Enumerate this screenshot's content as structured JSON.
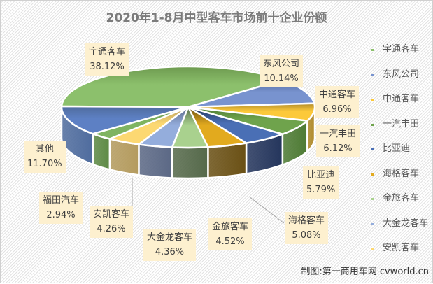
{
  "chart_data": {
    "type": "pie",
    "variant": "3d-pie",
    "title": "2020年1-8月中型客车市场前十企业份额",
    "categories": [
      "宇通客车",
      "东风公司",
      "中通客车",
      "一汽丰田",
      "比亚迪",
      "海格客车",
      "金旅客车",
      "大金龙客车",
      "安凯客车",
      "福田汽车",
      "其他"
    ],
    "values": [
      38.12,
      10.14,
      6.96,
      6.12,
      5.79,
      5.08,
      4.52,
      4.36,
      4.26,
      2.94,
      11.7
    ],
    "labels": [
      "38.12%",
      "10.14%",
      "6.96%",
      "6.12%",
      "5.79%",
      "5.08%",
      "4.52%",
      "4.36%",
      "4.26%",
      "2.94%",
      "11.70%"
    ],
    "colors": [
      "#8cc06c",
      "#7893cf",
      "#fcc93a",
      "#6fa34c",
      "#4a6fb5",
      "#e2aa1e",
      "#a9d18e",
      "#94addc",
      "#fcd872",
      "#7fb461",
      "#5d80c4"
    ],
    "side_colors": [
      "#6d9a4f",
      "#52679a",
      "#b08a2a",
      "#4d7a33",
      "#24355c",
      "#6a5014",
      "#55694a",
      "#5b6885",
      "#b49b5e",
      "#5e8a45",
      "#4f6c9e"
    ],
    "legend_position": "right",
    "legend": [
      "宇通客车",
      "东风公司",
      "中通客车",
      "一汽丰田",
      "比亚迪",
      "海格客车",
      "金旅客车",
      "大金龙客车",
      "安凯客车"
    ]
  },
  "footer": "制图:第一商用车网 cvworld.cn"
}
